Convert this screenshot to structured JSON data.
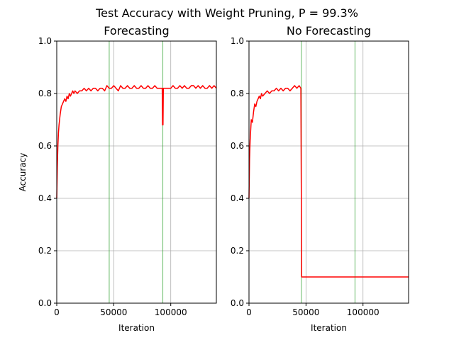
{
  "suptitle": "Test Accuracy with Weight Pruning, P = 99.3%",
  "colors": {
    "line": "#ff0000",
    "vline": "#2ca02c",
    "grid": "#b0b0b0",
    "axes": "#000000",
    "background": "#ffffff"
  },
  "chart_data": [
    {
      "type": "line",
      "title": "Forecasting",
      "xlabel": "Iteration",
      "ylabel": "Accuracy",
      "xlim": [
        0,
        140000
      ],
      "ylim": [
        0.0,
        1.0
      ],
      "xticks": [
        0,
        50000,
        100000
      ],
      "xtick_labels": [
        "0",
        "50000",
        "100000"
      ],
      "yticks": [
        0.0,
        0.2,
        0.4,
        0.6,
        0.8,
        1.0
      ],
      "ytick_labels": [
        "0.0",
        "0.2",
        "0.4",
        "0.6",
        "0.8",
        "1.0"
      ],
      "grid": true,
      "vlines": [
        46000,
        93000
      ],
      "series": [
        {
          "x": [
            0,
            500,
            1000,
            1500,
            2000,
            3000,
            4000,
            5000,
            6000,
            7000,
            8000,
            9000,
            10000,
            11000,
            12000,
            13000,
            14000,
            15000,
            16000,
            18000,
            20000,
            22000,
            24000,
            26000,
            28000,
            30000,
            32000,
            34000,
            36000,
            38000,
            40000,
            42000,
            44000,
            46000,
            48000,
            50000,
            52000,
            54000,
            56000,
            58000,
            60000,
            62000,
            64000,
            66000,
            68000,
            70000,
            72000,
            74000,
            76000,
            78000,
            80000,
            82000,
            84000,
            86000,
            88000,
            90000,
            92000,
            92500,
            92800,
            93000,
            93200,
            93500,
            94000,
            96000,
            98000,
            100000,
            102000,
            104000,
            106000,
            108000,
            110000,
            112000,
            114000,
            116000,
            118000,
            120000,
            122000,
            124000,
            126000,
            128000,
            130000,
            132000,
            134000,
            136000,
            138000,
            140000
          ],
          "y": [
            0.4,
            0.52,
            0.6,
            0.65,
            0.68,
            0.72,
            0.75,
            0.76,
            0.77,
            0.78,
            0.77,
            0.79,
            0.78,
            0.8,
            0.79,
            0.8,
            0.81,
            0.8,
            0.81,
            0.8,
            0.81,
            0.81,
            0.82,
            0.81,
            0.82,
            0.81,
            0.82,
            0.82,
            0.81,
            0.82,
            0.82,
            0.81,
            0.83,
            0.82,
            0.82,
            0.83,
            0.82,
            0.81,
            0.83,
            0.82,
            0.82,
            0.83,
            0.82,
            0.82,
            0.83,
            0.82,
            0.82,
            0.83,
            0.82,
            0.82,
            0.83,
            0.82,
            0.82,
            0.83,
            0.82,
            0.82,
            0.82,
            0.82,
            0.68,
            0.82,
            0.68,
            0.82,
            0.82,
            0.82,
            0.82,
            0.82,
            0.83,
            0.82,
            0.82,
            0.83,
            0.82,
            0.83,
            0.82,
            0.82,
            0.83,
            0.83,
            0.82,
            0.83,
            0.82,
            0.83,
            0.82,
            0.82,
            0.83,
            0.82,
            0.83,
            0.82
          ]
        }
      ]
    },
    {
      "type": "line",
      "title": "No Forecasting",
      "xlabel": "Iteration",
      "ylabel": "",
      "xlim": [
        0,
        140000
      ],
      "ylim": [
        0.0,
        1.0
      ],
      "xticks": [
        0,
        50000,
        100000
      ],
      "xtick_labels": [
        "0",
        "50000",
        "100000"
      ],
      "yticks": [
        0.0,
        0.2,
        0.4,
        0.6,
        0.8,
        1.0
      ],
      "ytick_labels": [
        "0.0",
        "0.2",
        "0.4",
        "0.6",
        "0.8",
        "1.0"
      ],
      "grid": true,
      "vlines": [
        46000,
        93000
      ],
      "series": [
        {
          "x": [
            0,
            500,
            1000,
            1500,
            2000,
            3000,
            4000,
            5000,
            6000,
            7000,
            8000,
            9000,
            10000,
            11000,
            12000,
            14000,
            16000,
            18000,
            20000,
            22000,
            24000,
            26000,
            28000,
            30000,
            32000,
            34000,
            36000,
            38000,
            40000,
            42000,
            44000,
            45500,
            46200,
            46500,
            50000,
            60000,
            80000,
            100000,
            120000,
            140000
          ],
          "y": [
            0.4,
            0.55,
            0.62,
            0.66,
            0.7,
            0.69,
            0.73,
            0.76,
            0.75,
            0.77,
            0.78,
            0.79,
            0.78,
            0.8,
            0.79,
            0.8,
            0.81,
            0.8,
            0.81,
            0.81,
            0.82,
            0.81,
            0.82,
            0.81,
            0.82,
            0.82,
            0.81,
            0.82,
            0.83,
            0.82,
            0.83,
            0.82,
            0.1,
            0.1,
            0.1,
            0.1,
            0.1,
            0.1,
            0.1,
            0.1
          ]
        }
      ]
    }
  ]
}
